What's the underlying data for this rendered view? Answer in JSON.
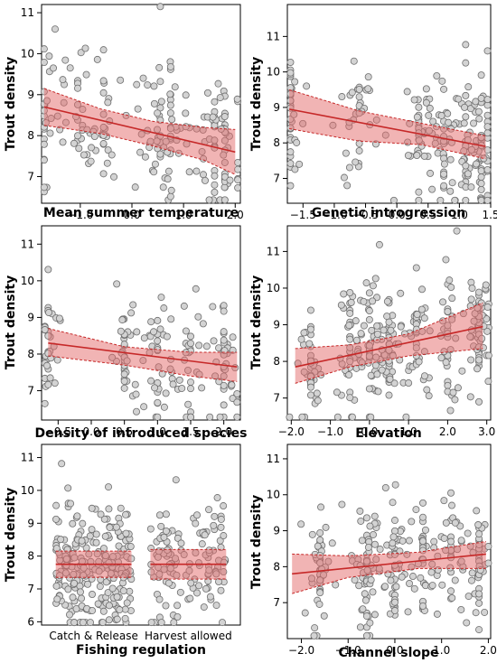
{
  "colors": {
    "point_fill": "#d3d3d3",
    "point_stroke": "#6e6e6e",
    "band": "#e46a6a",
    "line": "#c62828"
  },
  "chart_data": [
    {
      "type": "scatter",
      "xlabel": "Mean summer temperature",
      "ylabel": "Trout density",
      "xlim": [
        -1.75,
        2.1
      ],
      "ylim": [
        6.35,
        11.2
      ],
      "xticks": [
        -1.0,
        0.0,
        1.0,
        2.0
      ],
      "xtick_labels": [
        "−1.0",
        "0.0",
        "1.0",
        "2.0"
      ],
      "yticks": [
        7,
        8,
        9,
        10,
        11
      ],
      "fit": {
        "x": [
          -1.7,
          2.0
        ],
        "y": [
          8.7,
          7.6
        ]
      },
      "band": {
        "x": [
          -1.7,
          -0.6,
          0.4,
          1.4,
          2.0
        ],
        "upper": [
          9.15,
          8.65,
          8.35,
          8.2,
          8.15
        ],
        "lower": [
          8.25,
          8.05,
          7.75,
          7.4,
          7.05
        ]
      },
      "points": {
        "n": 230,
        "x_clusters": [
          -1.7,
          -1.05,
          -0.55,
          0.55,
          0.75,
          1.6,
          1.8
        ],
        "spread_sd": 0.75,
        "y_sd": 0.85
      }
    },
    {
      "type": "scatter",
      "xlabel": "Genetic introgression",
      "ylabel": "Trout density",
      "xlim": [
        -1.75,
        1.5
      ],
      "ylim": [
        6.3,
        11.9
      ],
      "xticks": [
        -1.5,
        -1.0,
        -0.5,
        0.0,
        0.5,
        1.0,
        1.5
      ],
      "xtick_labels": [
        "−1.5",
        "−1.0",
        "−0.5",
        "0.0",
        "0.5",
        "1.0",
        "1.5"
      ],
      "yticks": [
        7,
        8,
        9,
        10,
        11
      ],
      "fit": {
        "x": [
          -1.72,
          1.42
        ],
        "y": [
          8.95,
          7.9
        ]
      },
      "band": {
        "x": [
          -1.72,
          -0.6,
          0.4,
          1.42
        ],
        "upper": [
          9.5,
          8.9,
          8.55,
          8.2
        ],
        "lower": [
          8.4,
          8.05,
          7.95,
          7.55
        ]
      },
      "points": {
        "n": 260,
        "x_clusters": [
          -1.72,
          -0.6,
          0.35,
          0.75,
          1.1,
          1.35
        ],
        "spread_sd": 0.5,
        "y_sd": 0.9
      }
    },
    {
      "type": "scatter",
      "xlabel": "Density of introduced species",
      "ylabel": "Trout density",
      "xlim": [
        -0.75,
        2.25
      ],
      "ylim": [
        6.2,
        11.5
      ],
      "xticks": [
        -0.5,
        0.0,
        0.5,
        1.0,
        1.5,
        2.0
      ],
      "xtick_labels": [
        "−0.5",
        "0.0",
        "0.5",
        "1.0",
        "1.5",
        "2.0"
      ],
      "yticks": [
        7,
        8,
        9,
        10,
        11
      ],
      "fit": {
        "x": [
          -0.65,
          2.2
        ],
        "y": [
          8.3,
          7.65
        ]
      },
      "band": {
        "x": [
          -0.65,
          0.5,
          1.5,
          2.2
        ],
        "upper": [
          8.7,
          8.2,
          8.05,
          8.05
        ],
        "lower": [
          7.95,
          7.7,
          7.4,
          7.25
        ]
      },
      "points": {
        "n": 190,
        "x_clusters": [
          -0.65,
          0.5,
          1.0,
          1.5,
          2.0
        ],
        "spread_sd": 0.35,
        "y_sd": 0.85
      }
    },
    {
      "type": "scatter",
      "xlabel": "Elevation",
      "ylabel": "Trout density",
      "xlim": [
        -2.1,
        3.1
      ],
      "ylim": [
        6.4,
        11.7
      ],
      "xticks": [
        -2.0,
        -1.0,
        0.0,
        1.0,
        2.0,
        3.0
      ],
      "xtick_labels": [
        "−2.0",
        "−1.0",
        "0.0",
        "1.0",
        "2.0",
        "3.0"
      ],
      "yticks": [
        7,
        8,
        9,
        10,
        11
      ],
      "fit": {
        "x": [
          -1.9,
          2.9
        ],
        "y": [
          7.85,
          8.95
        ]
      },
      "band": {
        "x": [
          -1.9,
          -0.5,
          1.0,
          2.9
        ],
        "upper": [
          8.35,
          8.45,
          8.75,
          9.6
        ],
        "lower": [
          7.4,
          7.85,
          8.15,
          8.35
        ]
      },
      "points": {
        "n": 320,
        "x_clusters": [
          -1.5,
          -0.5,
          0.0,
          0.5,
          1.2,
          2.0,
          2.8
        ],
        "spread_sd": 0.55,
        "y_sd": 0.85
      }
    },
    {
      "type": "scatter",
      "xlabel": "Fishing regulation",
      "ylabel": "Trout density",
      "categories": [
        "Catch & Release",
        "Harvest allowed"
      ],
      "xlim": [
        -0.55,
        1.55
      ],
      "ylim": [
        5.9,
        11.4
      ],
      "yticks": [
        6,
        7,
        8,
        9,
        10,
        11
      ],
      "group_means": [
        7.75,
        7.75
      ],
      "group_band": {
        "upper": [
          8.15,
          8.2
        ],
        "lower": [
          7.35,
          7.3
        ]
      },
      "points": {
        "n_per_group": [
          250,
          130
        ],
        "y_sd": 0.9
      }
    },
    {
      "type": "scatter",
      "xlabel": "Channel slope",
      "ylabel": "Trout density",
      "xlim": [
        -2.3,
        2.05
      ],
      "ylim": [
        6.0,
        11.4
      ],
      "xticks": [
        -2.0,
        -1.0,
        0.0,
        1.0,
        2.0
      ],
      "xtick_labels": [
        "−2.0",
        "−1.0",
        "0.0",
        "1.0",
        "2.0"
      ],
      "yticks": [
        7,
        8,
        9,
        10,
        11
      ],
      "fit": {
        "x": [
          -2.2,
          1.95
        ],
        "y": [
          7.8,
          8.35
        ]
      },
      "band": {
        "x": [
          -2.2,
          -1.0,
          0.5,
          1.95
        ],
        "upper": [
          8.35,
          8.3,
          8.4,
          8.7
        ],
        "lower": [
          7.25,
          7.7,
          7.95,
          7.95
        ]
      },
      "points": {
        "n": 280,
        "x_clusters": [
          -1.6,
          -0.6,
          0.0,
          0.6,
          1.2,
          1.8
        ],
        "spread_sd": 0.45,
        "y_sd": 0.85
      }
    }
  ]
}
